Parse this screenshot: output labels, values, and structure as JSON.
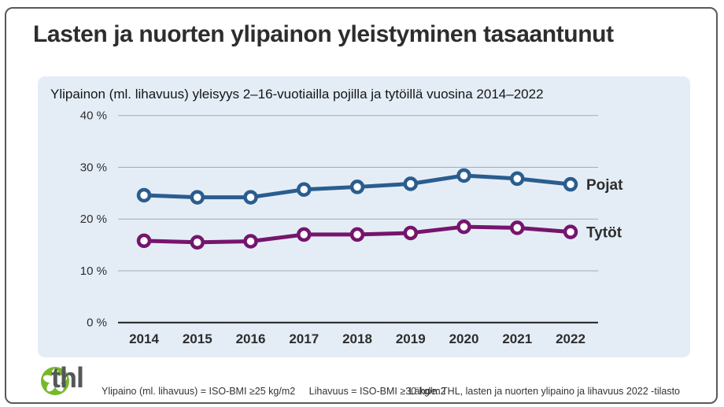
{
  "header": {
    "title": "Lasten ja nuorten ylipainon yleistyminen tasaantunut"
  },
  "chart_panel": {
    "subtitle": "Ylipainon (ml. lihavuus) yleisyys 2–16-vuotiailla pojilla ja tytöillä vuosina 2014–2022"
  },
  "chart_data": {
    "type": "line",
    "title": "Ylipainon (ml. lihavuus) yleisyys 2–16-vuotiailla pojilla ja tytöillä vuosina 2014–2022",
    "categories": [
      "2014",
      "2015",
      "2016",
      "2017",
      "2018",
      "2019",
      "2020",
      "2021",
      "2022"
    ],
    "series": [
      {
        "name": "Pojat",
        "color": "#2a5d8f",
        "values": [
          24.6,
          24.2,
          24.2,
          25.7,
          26.2,
          26.8,
          28.4,
          27.8,
          26.7
        ]
      },
      {
        "name": "Tytöt",
        "color": "#75156d",
        "values": [
          15.8,
          15.5,
          15.7,
          17.0,
          17.0,
          17.3,
          18.5,
          18.3,
          17.5
        ]
      }
    ],
    "xlabel": "",
    "ylabel": "",
    "ylim": [
      0,
      40
    ],
    "y_ticks": [
      {
        "value": 40,
        "label": "40 %"
      },
      {
        "value": 30,
        "label": "30 %"
      },
      {
        "value": 20,
        "label": "20 %"
      },
      {
        "value": 10,
        "label": "10 %"
      },
      {
        "value": 0,
        "label": "0 %"
      }
    ],
    "grid": true,
    "legend_position": "right-of-line-end",
    "marker": "open-circle",
    "gridline_color": "#a3a9af",
    "axis_color": "#1f1f1f",
    "background_color": "#e4edf6"
  },
  "footer": {
    "logo_text": "thl",
    "logo_green": "#76b82a",
    "note_overweight": "Ylipaino (ml. lihavuus) = ISO-BMI ≥25 kg/m2",
    "note_obesity": "Lihavuus = ISO-BMI ≥30 kg/m2",
    "source": "Lähde: THL, lasten ja nuorten ylipaino ja lihavuus 2022 -tilasto"
  }
}
